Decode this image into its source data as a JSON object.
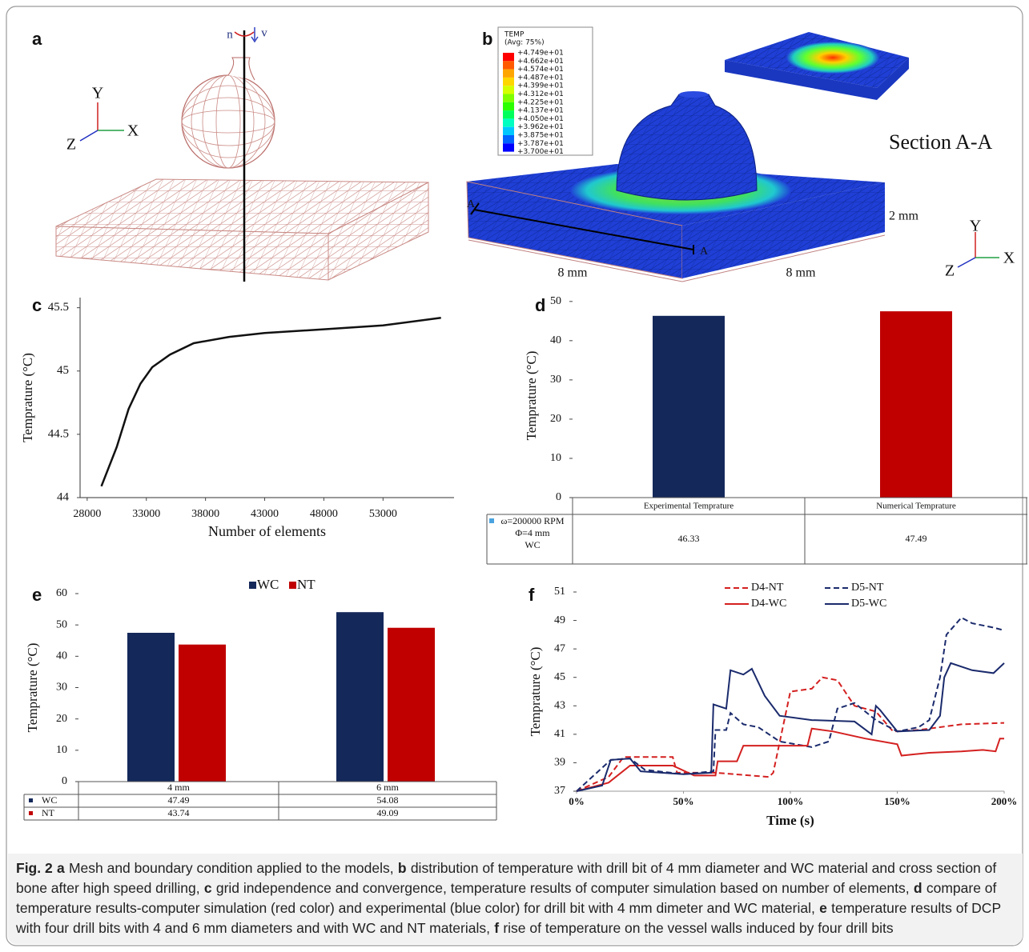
{
  "panel_labels": [
    "a",
    "b",
    "c",
    "d",
    "e",
    "f"
  ],
  "panel_a": {
    "axes": [
      "Y",
      "X",
      "Z"
    ],
    "motion": [
      "n",
      "v"
    ]
  },
  "panel_b": {
    "legend_title": "TEMP",
    "legend_subtitle": "(Avg: 75%)",
    "legend_values": [
      "+4.749e+01",
      "+4.662e+01",
      "+4.574e+01",
      "+4.487e+01",
      "+4.399e+01",
      "+4.312e+01",
      "+4.225e+01",
      "+4.137e+01",
      "+4.050e+01",
      "+3.962e+01",
      "+3.875e+01",
      "+3.787e+01",
      "+3.700e+01"
    ],
    "legend_colors": [
      "#ff0000",
      "#ff5a00",
      "#ffa500",
      "#ffd700",
      "#d4ff00",
      "#7fff00",
      "#2bff00",
      "#00ff5a",
      "#00ffc0",
      "#00c8ff",
      "#0064ff",
      "#0000ff"
    ],
    "section_label": "Section A-A",
    "section_marks": [
      "A",
      "A"
    ],
    "dimensions": [
      "2 mm",
      "8 mm",
      "8 mm"
    ],
    "axes": [
      "Y",
      "X",
      "Z"
    ]
  },
  "chart_data": [
    {
      "type": "line",
      "ylabel": "Temprature (°C)",
      "xlabel": "Number of elements",
      "x": [
        29200,
        30500,
        31500,
        32500,
        33500,
        35000,
        37000,
        40000,
        43000,
        48000,
        53000,
        57900
      ],
      "values": [
        44.09,
        44.4,
        44.7,
        44.9,
        45.03,
        45.13,
        45.22,
        45.27,
        45.3,
        45.33,
        45.36,
        45.42
      ],
      "color": "#111111",
      "xlim": [
        27400,
        59000
      ],
      "ylim": [
        44,
        45.58
      ],
      "xticks": [
        28000,
        33000,
        38000,
        43000,
        48000,
        53000
      ],
      "yticks": [
        44,
        44.5,
        45,
        45.5
      ]
    },
    {
      "type": "bar",
      "ylabel": "Temprature (°C)",
      "categories": [
        "Experimental Temprature",
        "Numerical Temprature"
      ],
      "values": [
        46.33,
        47.49
      ],
      "colors": [
        "#14285a",
        "#c00000"
      ],
      "ylim": [
        0,
        52
      ],
      "yticks": [
        0,
        10,
        20,
        30,
        40,
        50
      ],
      "row_label": [
        "ω=200000  RPM",
        "Φ=4 mm",
        "WC"
      ],
      "row_color": "#4aa3df"
    },
    {
      "type": "grouped_bar",
      "ylabel": "Temprature (°C)",
      "categories": [
        "4 mm",
        "6 mm"
      ],
      "series": [
        {
          "name": "WC",
          "color": "#14285a",
          "values": [
            47.49,
            54.08
          ]
        },
        {
          "name": "NT",
          "color": "#c00000",
          "values": [
            43.74,
            49.09
          ]
        }
      ],
      "ylim": [
        0,
        60
      ],
      "yticks": [
        0,
        10,
        20,
        30,
        40,
        50,
        60
      ]
    },
    {
      "type": "multiline",
      "ylabel": "Temprature (°C)",
      "xlabel": "Time (s)",
      "xlim": [
        0,
        200
      ],
      "ylim": [
        37,
        51
      ],
      "xticks": [
        {
          "value": 0,
          "label": "0%"
        },
        {
          "value": 50,
          "label": "50%"
        },
        {
          "value": 100,
          "label": "100%"
        },
        {
          "value": 150,
          "label": "150%"
        },
        {
          "value": 200,
          "label": "200%"
        }
      ],
      "yticks": [
        37,
        39,
        41,
        43,
        45,
        47,
        49,
        51
      ],
      "series": [
        {
          "name": "D4-NT",
          "color": "#d42020",
          "dash": true,
          "x": [
            0,
            15,
            22,
            45,
            47,
            65,
            90,
            92,
            100,
            110,
            115,
            122,
            130,
            140,
            148,
            160,
            180,
            200
          ],
          "values": [
            37,
            38,
            39.4,
            39.4,
            38.3,
            38.3,
            38,
            38.3,
            44,
            44.2,
            45,
            44.8,
            43,
            42.6,
            41.2,
            41.3,
            41.7,
            41.8
          ]
        },
        {
          "name": "D5-NT",
          "color": "#1a2a6c",
          "dash": true,
          "x": [
            0,
            16,
            25,
            32,
            50,
            64,
            65,
            70,
            72,
            78,
            85,
            90,
            95,
            110,
            118,
            122,
            130,
            140,
            150,
            160,
            165,
            170,
            173,
            180,
            185,
            195,
            200
          ],
          "values": [
            37,
            39.2,
            39.3,
            38.5,
            38.2,
            38.4,
            41.3,
            41.3,
            42.5,
            41.7,
            41.5,
            41,
            40.5,
            40.1,
            40.5,
            42.8,
            43.2,
            42,
            41.2,
            41.5,
            42,
            45,
            48,
            49.2,
            48.8,
            48.5,
            48.3
          ]
        },
        {
          "name": "D4-WC",
          "color": "#d42020",
          "dash": false,
          "x": [
            0,
            15,
            25,
            45,
            55,
            65,
            66,
            75,
            78,
            108,
            110,
            120,
            135,
            150,
            152,
            165,
            180,
            190,
            196,
            198,
            200
          ],
          "values": [
            37,
            37.6,
            38.8,
            38.8,
            38.1,
            38.1,
            39.1,
            39.1,
            40.2,
            40.2,
            41.4,
            41.2,
            40.7,
            40.3,
            39.5,
            39.7,
            39.8,
            39.9,
            39.8,
            40.7,
            40.7
          ]
        },
        {
          "name": "D5-WC",
          "color": "#1a2a6c",
          "dash": false,
          "x": [
            0,
            12,
            16,
            25,
            30,
            50,
            63,
            64,
            70,
            72,
            78,
            82,
            88,
            95,
            110,
            130,
            138,
            140,
            142,
            150,
            165,
            170,
            172,
            175,
            185,
            195,
            200
          ],
          "values": [
            37,
            37.4,
            39.2,
            39.3,
            38.4,
            38.2,
            38.3,
            43.1,
            42.8,
            45.5,
            45.2,
            45.6,
            43.7,
            42.3,
            42,
            41.9,
            41,
            43,
            42.7,
            41.2,
            41.3,
            42.3,
            45,
            46,
            45.5,
            45.3,
            46
          ]
        }
      ]
    }
  ],
  "caption": {
    "label": "Fig. 2",
    "parts": [
      {
        "letter": "a",
        "text": "Mesh and boundary condition applied to the models,"
      },
      {
        "letter": "b",
        "text": "distribution of temperature with drill bit of 4 mm diameter and WC material and cross section of bone after high speed drilling,"
      },
      {
        "letter": "c",
        "text": "grid independence and convergence, temperature results of computer simulation based on number of elements,"
      },
      {
        "letter": "d",
        "text": "compare of temperature results-computer simulation (red color) and experimental (blue color) for drill bit with 4 mm dimeter and WC material,"
      },
      {
        "letter": "e",
        "text": "temperature results of DCP with four drill bits with 4 and 6 mm diameters and with WC and NT materials,"
      },
      {
        "letter": "f",
        "text": "rise of temperature on the vessel walls induced by four drill bits"
      }
    ]
  }
}
